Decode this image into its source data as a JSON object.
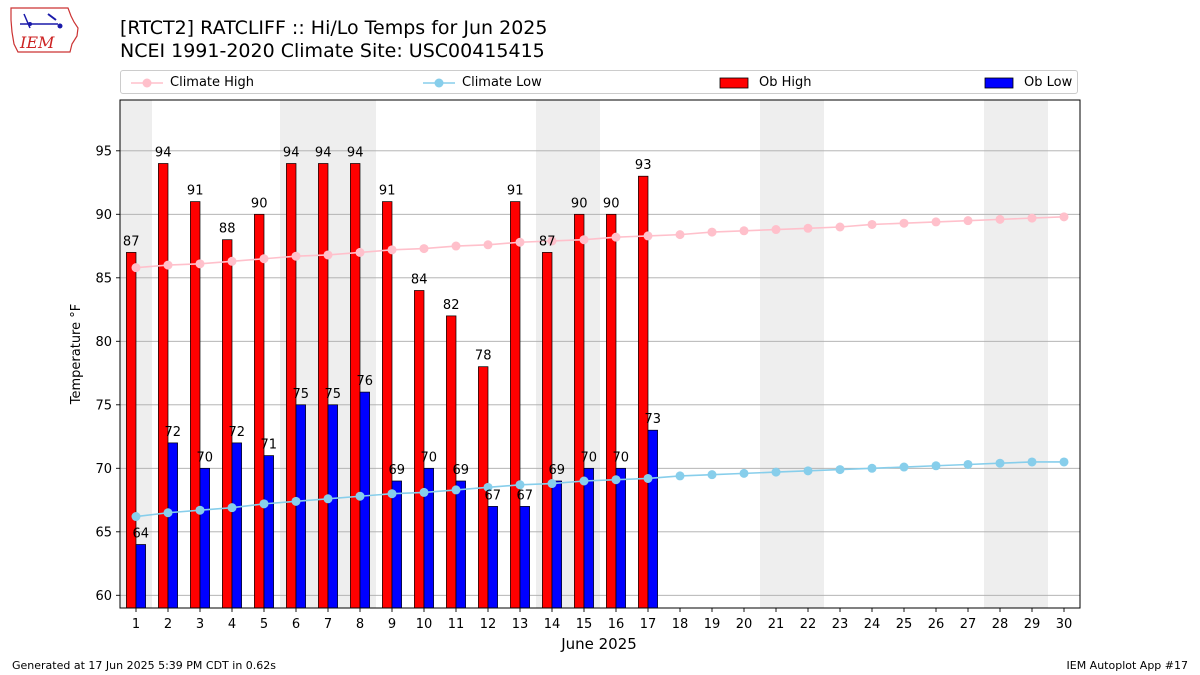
{
  "logo": {
    "text": "IEM"
  },
  "title": "[RTCT2] RATCLIFF :: Hi/Lo Temps for Jun 2025",
  "subtitle": "NCEI 1991-2020 Climate Site: USC00415415",
  "footer": {
    "left": "Generated at 17 Jun 2025 5:39 PM CDT in 0.62s",
    "right": "IEM Autoplot App #17"
  },
  "colors": {
    "climate_high": "#ffc0cb",
    "climate_low": "#87ceeb",
    "ob_high": "#ff0000",
    "ob_low": "#0000ff",
    "weekend_shade": "#eeeeee",
    "grid": "#aaaaaa"
  },
  "chart_data": {
    "type": "bar",
    "xlabel": "June 2025",
    "ylabel": "Temperature °F",
    "ylim": [
      59,
      99
    ],
    "yticks": [
      60,
      65,
      70,
      75,
      80,
      85,
      90,
      95
    ],
    "grid": "horizontal",
    "legend_position": "top",
    "days": [
      1,
      2,
      3,
      4,
      5,
      6,
      7,
      8,
      9,
      10,
      11,
      12,
      13,
      14,
      15,
      16,
      17,
      18,
      19,
      20,
      21,
      22,
      23,
      24,
      25,
      26,
      27,
      28,
      29,
      30
    ],
    "weekend_days": [
      1,
      6,
      7,
      8,
      14,
      15,
      21,
      22,
      28,
      29
    ],
    "series": [
      {
        "name": "Climate High",
        "kind": "line",
        "values": [
          85.8,
          86.0,
          86.1,
          86.3,
          86.5,
          86.7,
          86.8,
          87.0,
          87.2,
          87.3,
          87.5,
          87.6,
          87.8,
          87.9,
          88.0,
          88.2,
          88.3,
          88.4,
          88.6,
          88.7,
          88.8,
          88.9,
          89.0,
          89.2,
          89.3,
          89.4,
          89.5,
          89.6,
          89.7,
          89.8
        ]
      },
      {
        "name": "Climate Low",
        "kind": "line",
        "values": [
          66.2,
          66.5,
          66.7,
          66.9,
          67.2,
          67.4,
          67.6,
          67.8,
          68.0,
          68.1,
          68.3,
          68.5,
          68.7,
          68.8,
          69.0,
          69.1,
          69.2,
          69.4,
          69.5,
          69.6,
          69.7,
          69.8,
          69.9,
          70.0,
          70.1,
          70.2,
          70.3,
          70.4,
          70.5,
          70.5
        ]
      },
      {
        "name": "Ob High",
        "kind": "bar",
        "values": [
          87,
          94,
          91,
          88,
          90,
          94,
          94,
          94,
          91,
          84,
          82,
          78,
          91,
          87,
          90,
          90,
          93
        ]
      },
      {
        "name": "Ob Low",
        "kind": "bar",
        "values": [
          64,
          72,
          70,
          72,
          71,
          75,
          75,
          76,
          69,
          70,
          69,
          67,
          67,
          69,
          70,
          70,
          73
        ]
      }
    ]
  }
}
